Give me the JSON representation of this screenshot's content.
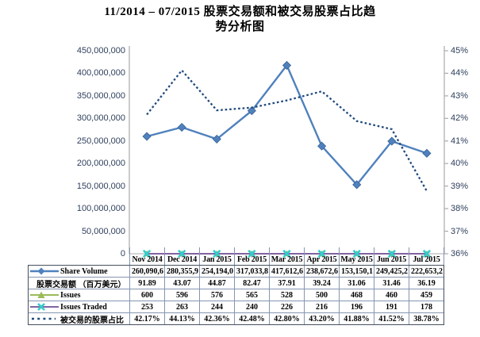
{
  "title": {
    "line1": "11/2014 – 07/2015 股票交易额和被交易股票占比趋",
    "line2": "势分析图",
    "full": "11/2014 – 07/2015 股票交易额和被交易股票占比趋势分析图"
  },
  "chart_data": {
    "type": "line",
    "title": "11/2014 – 07/2015 股票交易额和被交易股票占比趋势分析图",
    "categories": [
      "Nov 2014",
      "Dec 2014",
      "Jan 2015",
      "Feb 2015",
      "Mar 2015",
      "Apr 2015",
      "May 2015",
      "Jun 2015",
      "Jul 2015"
    ],
    "series": [
      {
        "name": "Share Volume",
        "axis": "left",
        "marker": "diamond",
        "line_style": "solid",
        "color": "#4F81BD",
        "values": [
          260090691.89,
          280355943.07,
          254194044.87,
          317033882.47,
          417612637.91,
          238672639.24,
          153150131.06,
          249425231.46,
          222653236.19
        ]
      },
      {
        "name": "Issues",
        "axis": "left",
        "marker": "triangle",
        "line_style": "solid",
        "color": "#9BBB59",
        "values": [
          600,
          596,
          576,
          565,
          528,
          500,
          468,
          460,
          459
        ]
      },
      {
        "name": "Issues Traded",
        "axis": "left",
        "marker": "x",
        "line_style": "solid",
        "color": "#8064A2",
        "marker_color": "#33CCCC",
        "values": [
          253,
          263,
          244,
          240,
          226,
          216,
          196,
          191,
          178
        ]
      },
      {
        "name": "被交易的股票占比",
        "axis": "right",
        "marker": "none",
        "line_style": "dotted",
        "color": "#1F497D",
        "values": [
          42.17,
          44.13,
          42.36,
          42.48,
          42.8,
          43.2,
          41.88,
          41.52,
          38.78
        ]
      }
    ],
    "left_axis": {
      "min": 0,
      "max": 450000000,
      "step": 50000000,
      "tick_labels": [
        "0",
        "50,000,000",
        "100,000,000",
        "150,000,000",
        "200,000,000",
        "250,000,000",
        "300,000,000",
        "350,000,000",
        "400,000,000",
        "450,000,000"
      ]
    },
    "right_axis": {
      "min": 36,
      "max": 45,
      "step": 1,
      "tick_labels": [
        "36%",
        "37%",
        "38%",
        "39%",
        "40%",
        "41%",
        "42%",
        "43%",
        "44%",
        "45%"
      ]
    },
    "grid": false,
    "legend_position": "data-table-left"
  },
  "data_table": {
    "header": [
      "Nov 2014",
      "Dec 2014",
      "Jan 2015",
      "Feb 2015",
      "Mar 2015",
      "Apr 2015",
      "May 2015",
      "Jun 2015",
      "Jul 2015"
    ],
    "rows": [
      {
        "key": "share-volume",
        "label": "Share Volume",
        "marker": "diamond",
        "clip": "left",
        "values": [
          "260,090,6",
          "280,355,9",
          "254,194,0",
          "317,033,8",
          "417,612,6",
          "238,672,6",
          "153,150,1",
          "249,425,2",
          "222,653,2"
        ]
      },
      {
        "key": "trade-value",
        "label": "股票交易额 （百万美元）",
        "marker": "none",
        "clip": "none",
        "values": [
          "91.89",
          "43.07",
          "44.87",
          "82.47",
          "37.91",
          "39.24",
          "31.06",
          "31.46",
          "36.19"
        ]
      },
      {
        "key": "issues",
        "label": "Issues",
        "marker": "triangle",
        "clip": "none",
        "values": [
          "600",
          "596",
          "576",
          "565",
          "528",
          "500",
          "468",
          "460",
          "459"
        ]
      },
      {
        "key": "issues-traded",
        "label": "Issues Traded",
        "marker": "x",
        "clip": "none",
        "values": [
          "253",
          "263",
          "244",
          "240",
          "226",
          "216",
          "196",
          "191",
          "178"
        ]
      },
      {
        "key": "pct-traded",
        "label": "被交易的股票占比",
        "marker": "dotted",
        "clip": "none",
        "values": [
          "42.17%",
          "44.13%",
          "42.36%",
          "42.48%",
          "42.80%",
          "43.20%",
          "41.88%",
          "41.52%",
          "38.78%"
        ]
      }
    ]
  },
  "colors": {
    "share_volume_line": "#4F81BD",
    "issues_line": "#9BBB59",
    "issues_traded_line": "#8064A2",
    "issues_traded_marker": "#33CCCC",
    "pct_dotted_line": "#1F497D",
    "axis_text": "#2E3F5C",
    "axis_line": "#ABABAB",
    "table_border_inner": "#8496B0",
    "table_border_outer": "#44505E",
    "background": "#FFFFFF"
  }
}
